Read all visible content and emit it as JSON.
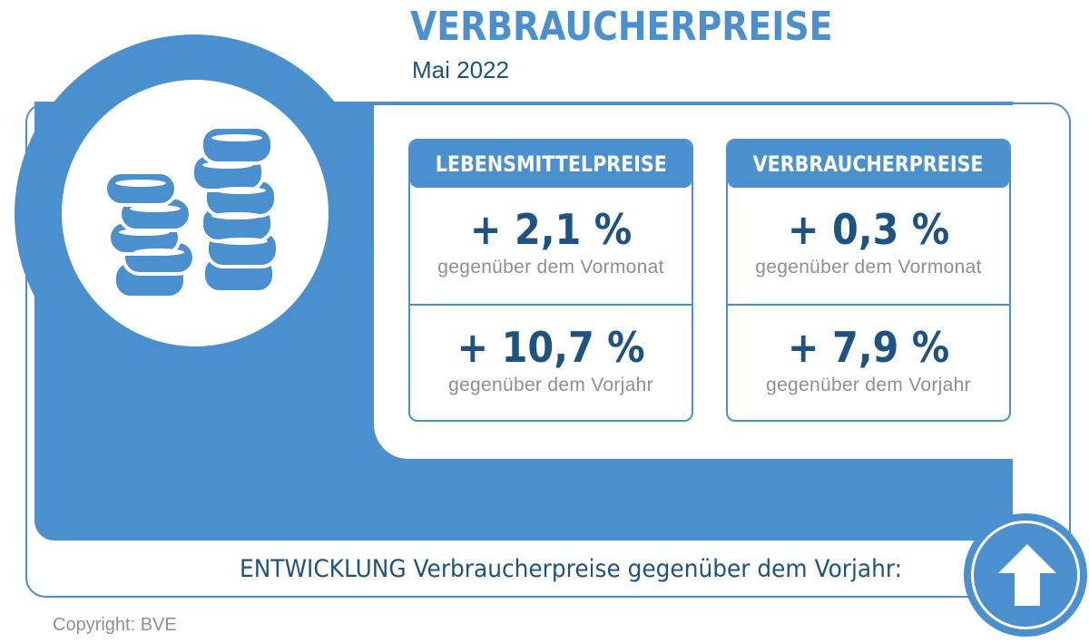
{
  "header": {
    "title": "VERBRAUCHERPREISE",
    "subtitle": "Mai 2022"
  },
  "cards": [
    {
      "heading": "LEBENSMITTELPREISE",
      "monthly_value": "+ 2,1 %",
      "monthly_label": "gegenüber dem Vormonat",
      "yearly_value": "+ 10,7 %",
      "yearly_label": "gegenüber dem Vorjahr"
    },
    {
      "heading": "VERBRAUCHERPREISE",
      "monthly_value": "+ 0,3 %",
      "monthly_label": "gegenüber dem Vormonat",
      "yearly_value": "+ 7,9 %",
      "yearly_label": "gegenüber dem Vorjahr"
    }
  ],
  "footer": {
    "trend_label": "ENTWICKLUNG Verbraucherpreise gegenüber dem Vorjahr:",
    "trend_icon": "arrow-up-icon",
    "copyright": "Copyright: BVE"
  },
  "colors": {
    "accent": "#4a8fce",
    "dark_blue": "#1d5283",
    "gray": "#8f8f8f"
  },
  "icons": {
    "coins": "coins-icon"
  }
}
